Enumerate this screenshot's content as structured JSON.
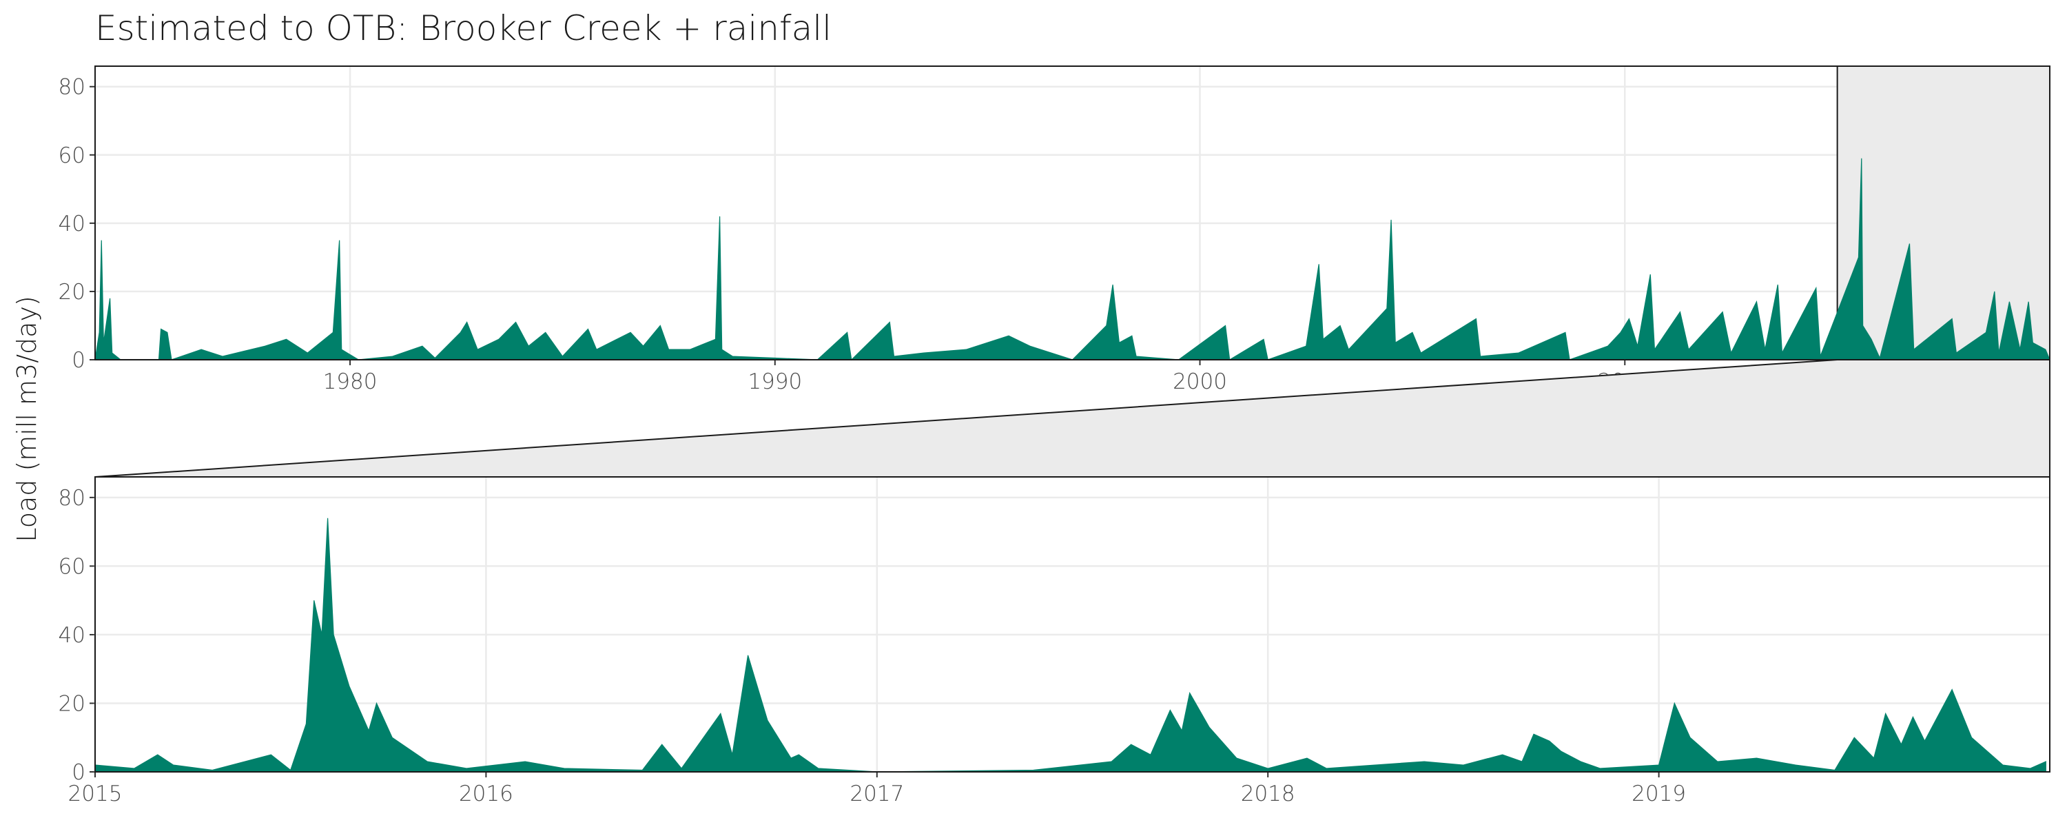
{
  "chart_data": [
    {
      "type": "area",
      "title": "Estimated to OTB: Brooker Creek + rainfall",
      "y_label": "Load (mill m3/day)",
      "color": "#00806a",
      "x": [
        1974.0,
        1974.1,
        1974.15,
        1974.2,
        1974.35,
        1974.4,
        1974.6,
        1975.5,
        1975.55,
        1975.7,
        1975.8,
        1976.5,
        1977,
        1978,
        1978.5,
        1979,
        1979.6,
        1979.75,
        1979.8,
        1980.2,
        1981,
        1981.7,
        1982,
        1982.6,
        1982.75,
        1983,
        1983.5,
        1983.9,
        1984.2,
        1984.6,
        1985,
        1985.6,
        1985.8,
        1986.6,
        1986.9,
        1987.3,
        1987.5,
        1988,
        1988.6,
        1988.7,
        1988.75,
        1989,
        1990,
        1991,
        1991.7,
        1991.8,
        1992.7,
        1992.8,
        1993.5,
        1994.5,
        1995.5,
        1996,
        1996.5,
        1997,
        1997.8,
        1997.95,
        1998.1,
        1998.4,
        1998.5,
        1999.5,
        2000.6,
        2000.7,
        2001.5,
        2001.6,
        2002.5,
        2002.8,
        2002.9,
        2003.3,
        2003.5,
        2004.4,
        2004.5,
        2004.6,
        2005,
        2005.2,
        2006.5,
        2006.6,
        2007.5,
        2008.6,
        2008.7,
        2009.6,
        2009.9,
        2010.1,
        2010.3,
        2010.6,
        2010.7,
        2011.3,
        2011.5,
        2012.3,
        2012.5,
        2013.1,
        2013.3,
        2013.6,
        2013.7,
        2014.5,
        2014.6,
        2015.5,
        2015.57,
        2015.6,
        2015.8,
        2016,
        2016.7,
        2016.8,
        2017.7,
        2017.8,
        2018.5,
        2018.7,
        2018.8,
        2019.05,
        2019.3,
        2019.5,
        2019.6,
        2019.9,
        2020
      ],
      "values": [
        0,
        8,
        35,
        5,
        18,
        2,
        0,
        0,
        9,
        8,
        0,
        3,
        1,
        4,
        6,
        2,
        8,
        35,
        3,
        0,
        1,
        4,
        0.5,
        8,
        11,
        3,
        6,
        11,
        4,
        8,
        1,
        9,
        3,
        8,
        4,
        10,
        3,
        3,
        6,
        42,
        3,
        1,
        0.5,
        0,
        8,
        0,
        11,
        1,
        2,
        3,
        7,
        4,
        2,
        0,
        10,
        22,
        5,
        7,
        1,
        0,
        10,
        0,
        6,
        0,
        4,
        28,
        6,
        10,
        3,
        15,
        41,
        5,
        8,
        2,
        12,
        1,
        2,
        8,
        0,
        4,
        8,
        12,
        4,
        25,
        3,
        14,
        3,
        14,
        2,
        17,
        3,
        22,
        2,
        21,
        1,
        30,
        59,
        10,
        6,
        0.5,
        34,
        3,
        12,
        2,
        8,
        20,
        2,
        17,
        3,
        17,
        5,
        3,
        0
      ],
      "xlim": [
        1974,
        2020
      ],
      "ylim": [
        0,
        86
      ],
      "xticks": [
        1980,
        1990,
        2000,
        2010
      ],
      "yticks": [
        0,
        20,
        40,
        60,
        80
      ],
      "grid": true
    },
    {
      "type": "area",
      "color": "#00806a",
      "x": [
        2015,
        2015.1,
        2015.16,
        2015.2,
        2015.3,
        2015.45,
        2015.5,
        2015.54,
        2015.56,
        2015.58,
        2015.595,
        2015.61,
        2015.65,
        2015.7,
        2015.72,
        2015.76,
        2015.85,
        2015.95,
        2016.1,
        2016.2,
        2016.4,
        2016.45,
        2016.5,
        2016.6,
        2016.63,
        2016.67,
        2016.72,
        2016.78,
        2016.8,
        2016.85,
        2017,
        2017.4,
        2017.6,
        2017.65,
        2017.7,
        2017.75,
        2017.78,
        2017.8,
        2017.85,
        2017.92,
        2018,
        2018.1,
        2018.15,
        2018.4,
        2018.5,
        2018.6,
        2018.65,
        2018.68,
        2018.72,
        2018.75,
        2018.8,
        2018.85,
        2019,
        2019.04,
        2019.08,
        2019.15,
        2019.25,
        2019.35,
        2019.45,
        2019.5,
        2019.55,
        2019.58,
        2019.62,
        2019.65,
        2019.68,
        2019.75,
        2019.8,
        2019.88,
        2019.95,
        2019.99
      ],
      "values": [
        2,
        1,
        5,
        2,
        0.5,
        5,
        0.5,
        14,
        50,
        40,
        74,
        40,
        25,
        12,
        20,
        10,
        3,
        1,
        3,
        1,
        0.5,
        8,
        1,
        17,
        5,
        34,
        15,
        4,
        5,
        1,
        0,
        0.5,
        3,
        8,
        5,
        18,
        12,
        23,
        13,
        4,
        1,
        4,
        1,
        3,
        2,
        5,
        3,
        11,
        9,
        6,
        3,
        1,
        2,
        20,
        10,
        3,
        4,
        2,
        0.5,
        10,
        4,
        17,
        8,
        16,
        9,
        24,
        10,
        2,
        1,
        3
      ],
      "xlim": [
        2015,
        2020
      ],
      "ylim": [
        0,
        86
      ],
      "xticks": [
        2015,
        2016,
        2017,
        2018,
        2019
      ],
      "yticks": [
        0,
        20,
        40,
        60,
        80
      ],
      "grid": true
    }
  ]
}
